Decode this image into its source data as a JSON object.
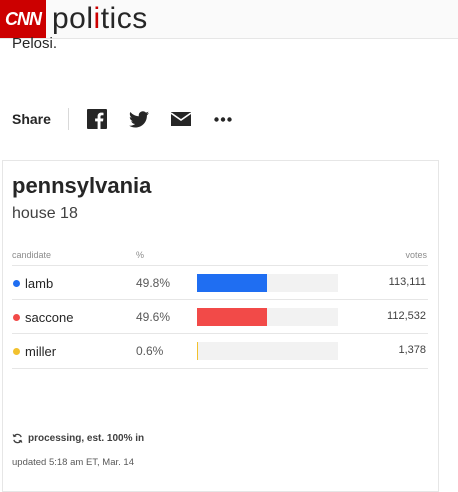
{
  "header": {
    "logo_text": "CNN",
    "section_parts": [
      "pol",
      "i",
      "tics"
    ],
    "brand_color": "#cc0000"
  },
  "article": {
    "cut_text": "Pelosi."
  },
  "share": {
    "label": "Share",
    "icons": [
      "facebook-icon",
      "twitter-icon",
      "email-icon",
      "more-icon"
    ]
  },
  "results": {
    "state": "pennsylvania",
    "race": "house 18",
    "columns": {
      "candidate": "candidate",
      "percent": "%",
      "votes": "votes"
    },
    "candidates": [
      {
        "name": "lamb",
        "percent": "49.8%",
        "votes": "113,111",
        "share": 0.498,
        "color": "#1f6ef2"
      },
      {
        "name": "saccone",
        "percent": "49.6%",
        "votes": "112,532",
        "share": 0.496,
        "color": "#f24a48"
      },
      {
        "name": "miller",
        "percent": "0.6%",
        "votes": "1,378",
        "share": 0.006,
        "color": "#f2c12e"
      }
    ],
    "status": "processing, est. 100% in",
    "updated": "updated 5:18 am ET, Mar. 14"
  }
}
